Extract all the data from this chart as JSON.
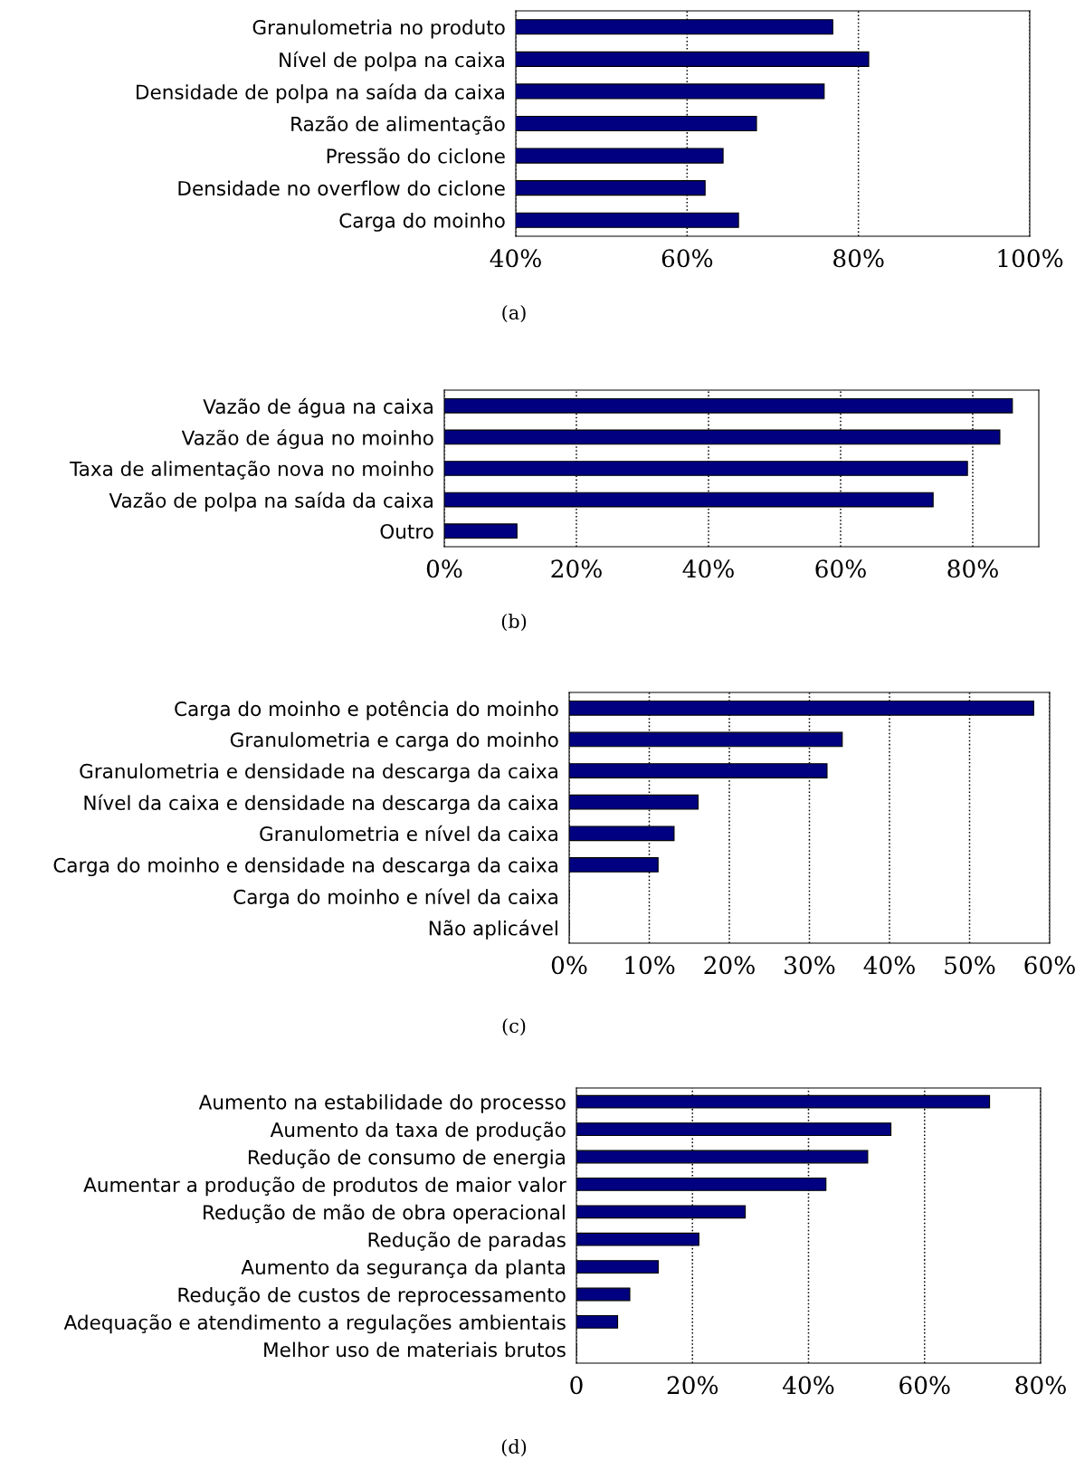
{
  "chart_data": [
    {
      "type": "bar",
      "orientation": "horizontal",
      "categories": [
        "Granulometria no produto",
        "Nível de polpa na caixa",
        "Densidade de polpa na saída da caixa",
        "Razão de alimentação",
        "Pressão do ciclone",
        "Densidade no overflow do ciclone",
        "Carga do moinho"
      ],
      "values": [
        77,
        81.2,
        76,
        68.1,
        64.2,
        62.1,
        66
      ],
      "color": "#000080",
      "xlim": [
        40,
        100
      ],
      "xticks": [
        {
          "value": 40,
          "label": "40%"
        },
        {
          "value": 60,
          "label": "60%"
        },
        {
          "value": 80,
          "label": "80%"
        },
        {
          "value": 100,
          "label": "100%"
        }
      ],
      "grid": "x",
      "line_style": "dotted",
      "annotations": [
        "(a)"
      ]
    },
    {
      "type": "bar",
      "orientation": "horizontal",
      "categories": [
        "Vazão de água na caixa",
        "Vazão de água no moinho",
        "Taxa de alimentação nova no moinho",
        "Vazão de polpa na saída da caixa",
        "Outro"
      ],
      "values": [
        86,
        84.1,
        79.2,
        74,
        11
      ],
      "color": "#000080",
      "xlim": [
        0,
        90
      ],
      "xticks": [
        {
          "value": 0,
          "label": "0%"
        },
        {
          "value": 20,
          "label": "20%"
        },
        {
          "value": 40,
          "label": "40%"
        },
        {
          "value": 60,
          "label": "60%"
        },
        {
          "value": 80,
          "label": "80%"
        }
      ],
      "grid": "x",
      "line_style": "dotted",
      "annotations": [
        "(b)"
      ]
    },
    {
      "type": "bar",
      "orientation": "horizontal",
      "categories": [
        "Carga do moinho e potência do moinho",
        "Granulometria e carga do moinho",
        "Granulometria e densidade na descarga da caixa",
        "Nível da caixa e densidade na descarga da caixa",
        "Granulometria e nível da caixa",
        "Carga do moinho e densidade na descarga da caixa",
        "Carga do moinho e nível da caixa",
        "Não aplicável"
      ],
      "values": [
        58,
        34.1,
        32.2,
        16.1,
        13.1,
        11.1,
        0,
        0
      ],
      "color": "#000080",
      "xlim": [
        0,
        60
      ],
      "xticks": [
        {
          "value": 0,
          "label": "0%"
        },
        {
          "value": 10,
          "label": "10%"
        },
        {
          "value": 20,
          "label": "20%"
        },
        {
          "value": 30,
          "label": "30%"
        },
        {
          "value": 40,
          "label": "40%"
        },
        {
          "value": 50,
          "label": "50%"
        },
        {
          "value": 60,
          "label": "60%"
        }
      ],
      "grid": "x",
      "line_style": "dotted",
      "annotations": [
        "(c)"
      ]
    },
    {
      "type": "bar",
      "orientation": "horizontal",
      "categories": [
        "Aumento na estabilidade do processo",
        "Aumento da taxa de produção",
        "Redução de consumo de energia",
        "Aumentar a produção de produtos de maior valor",
        "Redução de mão de obra operacional",
        "Redução de paradas",
        "Aumento da segurança da planta",
        "Redução de custos de reprocessamento",
        "Adequação e atendimento a regulações ambientais",
        "Melhor uso de materiais brutos"
      ],
      "values": [
        71.2,
        54.2,
        50.2,
        43,
        29.1,
        21.1,
        14.1,
        9.2,
        7.1,
        0
      ],
      "color": "#000080",
      "xlim": [
        0,
        80
      ],
      "xticks": [
        0,
        {
          "value": 20,
          "label": "20%"
        },
        {
          "value": 40,
          "label": "40%"
        },
        {
          "value": 60,
          "label": "60%"
        },
        {
          "value": 80,
          "label": "80%"
        }
      ],
      "grid": "x",
      "line_style": "dotted",
      "annotations": [
        "(d)"
      ]
    }
  ]
}
